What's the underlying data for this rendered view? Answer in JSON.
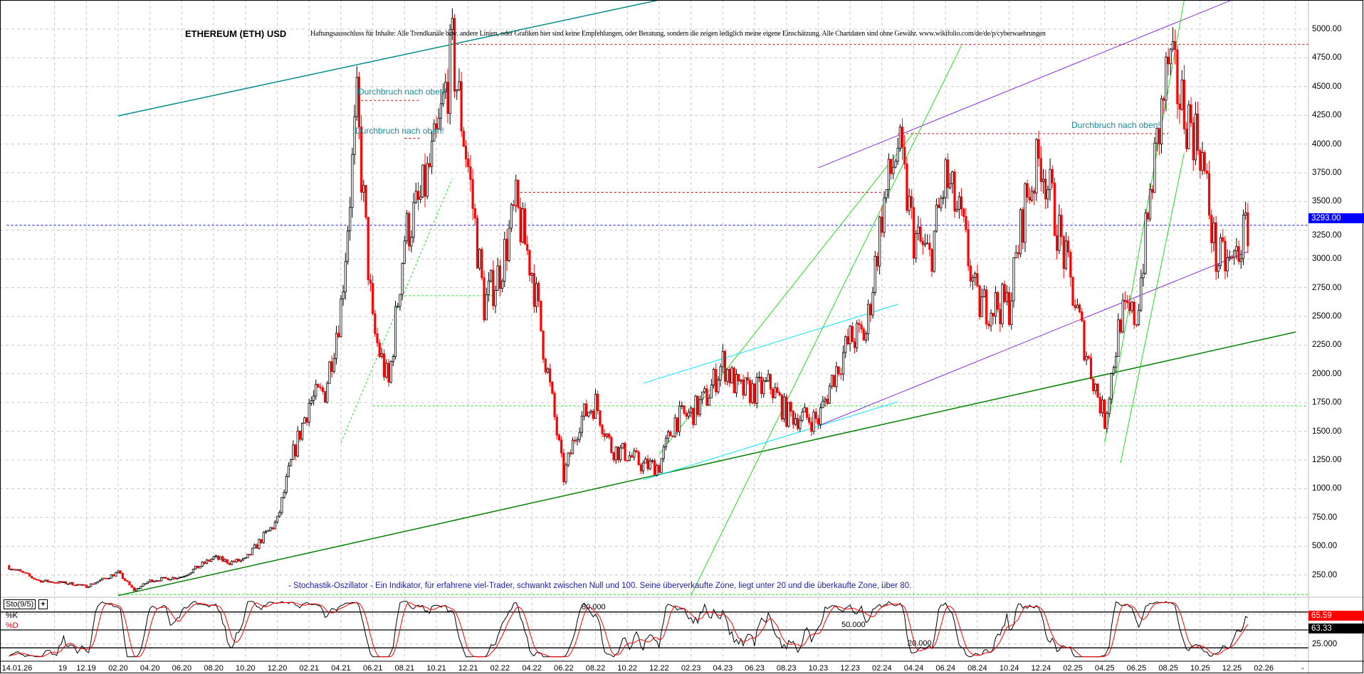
{
  "header": {
    "title": "ETHEREUM (ETH) USD",
    "disclaimer": "Haftungsausschluss für Inhalte: Alle Trendkanäle bzw. andere Linien, oder Grafiken hier sind keine Empfehlungen, oder Beratung, sondern die zeigen lediglich meine eigene Einschätzung. Alle Chartdaten sind ohne Gewähr.  www.wikifolio.com/de/de/p/cyberwaehrungen"
  },
  "annotations": {
    "breakout_1": "Durchbruch nach oben!",
    "breakout_2": "Durchbruch nach oben!",
    "breakout_3": "Durchbruch nach oben!",
    "stochastic_description": "- Stochastik-Oszillator - Ein Indikator, für erfahrene viel-Trader, schwankt zwischen Null und 100. Seine überverkaufte Zone, liegt unter 20 und die überkaufte Zone, über 80."
  },
  "colors": {
    "bull_candle": "#000000",
    "bear_candle": "#ff0000",
    "current_price": "#0000ff",
    "trend_green": "#008000",
    "trend_light_green": "#22dd22",
    "trend_purple": "#8a2be2",
    "trend_teal": "#008b8b",
    "trend_cyan": "#00e5ff",
    "ath_line": "#dd0000"
  },
  "chart_data": [
    {
      "type": "candlestick",
      "title": "ETHEREUM (ETH) USD",
      "y_axis": {
        "side": "right",
        "ylim": [
          0,
          5250
        ],
        "ticks": [
          "250.00",
          "500.00",
          "750.00",
          "1000.00",
          "1250.00",
          "1500.00",
          "1750.00",
          "2000.00",
          "2250.00",
          "2500.00",
          "2750.00",
          "3000.00",
          "3250.00",
          "3500.00",
          "3750.00",
          "4000.00",
          "4250.00",
          "4500.00",
          "4750.00",
          "5000.00"
        ]
      },
      "x_axis": {
        "ticks": [
          "14.01.26",
          "19",
          "12.19",
          "02.20",
          "04.20",
          "06.20",
          "08.20",
          "10.20",
          "12.20",
          "02.21",
          "04.21",
          "06.21",
          "08.21",
          "10.21",
          "12.21",
          "02.22",
          "04.22",
          "06.22",
          "08.22",
          "10.22",
          "12.22",
          "02.23",
          "04.23",
          "06.23",
          "08.23",
          "10.23",
          "12.23",
          "02.24",
          "04.24",
          "06.24",
          "08.24",
          "10.24",
          "12.24",
          "02.25",
          "04.25",
          "06.25",
          "08.25",
          "10.25",
          "12.25",
          "02.26"
        ],
        "end_marker": "-"
      },
      "grid": true,
      "current_price": {
        "label": "3293.00",
        "value": 3293
      },
      "price_path": [
        [
          "2019-07",
          330
        ],
        [
          "2019-09",
          200
        ],
        [
          "2019-11",
          175
        ],
        [
          "2019-12",
          150
        ],
        [
          "2020-02",
          270
        ],
        [
          "2020-03",
          115
        ],
        [
          "2020-04",
          200
        ],
        [
          "2020-06",
          235
        ],
        [
          "2020-08",
          400
        ],
        [
          "2020-09",
          360
        ],
        [
          "2020-10",
          380
        ],
        [
          "2020-11",
          560
        ],
        [
          "2020-12",
          720
        ],
        [
          "2021-01",
          1300
        ],
        [
          "2021-02",
          1750
        ],
        [
          "2021-03",
          1850
        ],
        [
          "2021-04",
          2600
        ],
        [
          "2021-05",
          4300
        ],
        [
          "2021-06",
          2400
        ],
        [
          "2021-07",
          1900
        ],
        [
          "2021-08",
          3200
        ],
        [
          "2021-09",
          3500
        ],
        [
          "2021-10",
          4000
        ],
        [
          "2021-11",
          4800
        ],
        [
          "2021-12",
          3800
        ],
        [
          "2022-01",
          2600
        ],
        [
          "2022-02",
          2900
        ],
        [
          "2022-03",
          3450
        ],
        [
          "2022-04",
          2900
        ],
        [
          "2022-05",
          2000
        ],
        [
          "2022-06",
          1100
        ],
        [
          "2022-07",
          1600
        ],
        [
          "2022-08",
          1750
        ],
        [
          "2022-09",
          1350
        ],
        [
          "2022-10",
          1300
        ],
        [
          "2022-11",
          1200
        ],
        [
          "2022-12",
          1200
        ],
        [
          "2023-01",
          1600
        ],
        [
          "2023-02",
          1650
        ],
        [
          "2023-03",
          1800
        ],
        [
          "2023-04",
          2100
        ],
        [
          "2023-05",
          1850
        ],
        [
          "2023-06",
          1850
        ],
        [
          "2023-07",
          1900
        ],
        [
          "2023-08",
          1650
        ],
        [
          "2023-09",
          1620
        ],
        [
          "2023-10",
          1600
        ],
        [
          "2023-11",
          2000
        ],
        [
          "2023-12",
          2300
        ],
        [
          "2024-01",
          2350
        ],
        [
          "2024-02",
          3400
        ],
        [
          "2024-03",
          4000
        ],
        [
          "2024-04",
          3200
        ],
        [
          "2024-05",
          3000
        ],
        [
          "2024-06",
          3700
        ],
        [
          "2024-07",
          3300
        ],
        [
          "2024-08",
          2600
        ],
        [
          "2024-09",
          2600
        ],
        [
          "2024-10",
          2600
        ],
        [
          "2024-11",
          3500
        ],
        [
          "2024-12",
          3900
        ],
        [
          "2025-01",
          3300
        ],
        [
          "2025-02",
          2700
        ],
        [
          "2025-03",
          2100
        ],
        [
          "2025-04",
          1600
        ],
        [
          "2025-05",
          2500
        ],
        [
          "2025-06",
          2500
        ],
        [
          "2025-07",
          3700
        ],
        [
          "2025-08",
          4700
        ],
        [
          "2025-09",
          4300
        ],
        [
          "2025-10",
          4000
        ],
        [
          "2025-11",
          3000
        ],
        [
          "2025-12",
          2950
        ],
        [
          "2026-01",
          3293
        ]
      ],
      "trendlines": [
        {
          "color": "trend_teal",
          "style": "solid",
          "points": [
            [
              "2020-02",
              4245
            ],
            [
              "2022-12",
              5254
            ]
          ]
        },
        {
          "color": "trend_green",
          "style": "solid",
          "points": [
            [
              "2020-02",
              70
            ],
            [
              "2026-04",
              2364
            ]
          ]
        },
        {
          "color": "trend_purple",
          "style": "solid",
          "points": [
            [
              "2023-10",
              1547
            ],
            [
              "2026-01",
              3063
            ]
          ]
        },
        {
          "color": "trend_purple",
          "style": "solid",
          "points": [
            [
              "2023-10",
              3793
            ],
            [
              "2025-12",
              5254
            ]
          ]
        },
        {
          "color": "trend_light_green",
          "style": "solid",
          "points": [
            [
              "2023-02",
              70
            ],
            [
              "2024-07",
              4858
            ]
          ]
        },
        {
          "color": "trend_light_green",
          "style": "solid",
          "points": [
            [
              "2022-12",
              1300
            ],
            [
              "2024-04",
              4100
            ]
          ]
        },
        {
          "color": "trend_cyan",
          "style": "solid",
          "points": [
            [
              "2022-11",
              1918
            ],
            [
              "2024-03",
              2605
            ]
          ]
        },
        {
          "color": "trend_cyan",
          "style": "solid",
          "points": [
            [
              "2022-11",
              1077
            ],
            [
              "2024-03",
              1757
            ]
          ]
        },
        {
          "color": "trend_light_green",
          "style": "solid",
          "points": [
            [
              "2025-04",
              1398
            ],
            [
              "2025-09",
              5254
            ]
          ]
        },
        {
          "color": "trend_light_green",
          "style": "solid",
          "points": [
            [
              "2025-05",
              1225
            ],
            [
              "2025-09",
              3923
            ]
          ]
        },
        {
          "color": "trend_light_green",
          "style": "dashed",
          "points": [
            [
              "2021-04",
              1400
            ],
            [
              "2021-11",
              3700
            ]
          ]
        },
        {
          "color": "ath_line",
          "style": "dashed",
          "points": [
            [
              "2021-05",
              4380
            ],
            [
              "2021-09",
              4380
            ]
          ]
        },
        {
          "color": "ath_line",
          "style": "dashed",
          "points": [
            [
              "2021-08",
              4050
            ],
            [
              "2021-09",
              4050
            ]
          ]
        },
        {
          "color": "ath_line",
          "style": "dashed",
          "points": [
            [
              "2024-03",
              4090
            ],
            [
              "2025-08",
              4090
            ]
          ]
        },
        {
          "color": "ath_line",
          "style": "dashed",
          "points": [
            [
              "2022-03",
              3580
            ],
            [
              "2024-02",
              3580
            ]
          ]
        }
      ],
      "horizontal_levels": [
        {
          "value": 4868,
          "color": "ath_line",
          "from": "2021-11"
        },
        {
          "value": 3293,
          "color": "current_price",
          "from": "2019-07"
        },
        {
          "value": 1720,
          "color": "trend_light_green",
          "from": "2021-06"
        },
        {
          "value": 2680,
          "color": "trend_light_green",
          "from": "2021-08",
          "to": "2022-02"
        },
        {
          "value": 80,
          "color": "trend_light_green",
          "from": "2020-02"
        }
      ]
    },
    {
      "type": "line",
      "title": "Sto(9/5)",
      "series": [
        {
          "name": "%K",
          "color": "#000000",
          "last": 63.33
        },
        {
          "name": "%D",
          "color": "#ff0000",
          "last": 65.59
        }
      ],
      "levels": [
        {
          "value": 80,
          "label": "80.000"
        },
        {
          "value": 50,
          "label": "50.000"
        },
        {
          "value": 20,
          "label": "20.000"
        }
      ],
      "y_ticks": [
        "25.000"
      ],
      "last_labels": {
        "d": "65.59",
        "k": "63.33"
      },
      "ylim": [
        0,
        100
      ]
    }
  ]
}
